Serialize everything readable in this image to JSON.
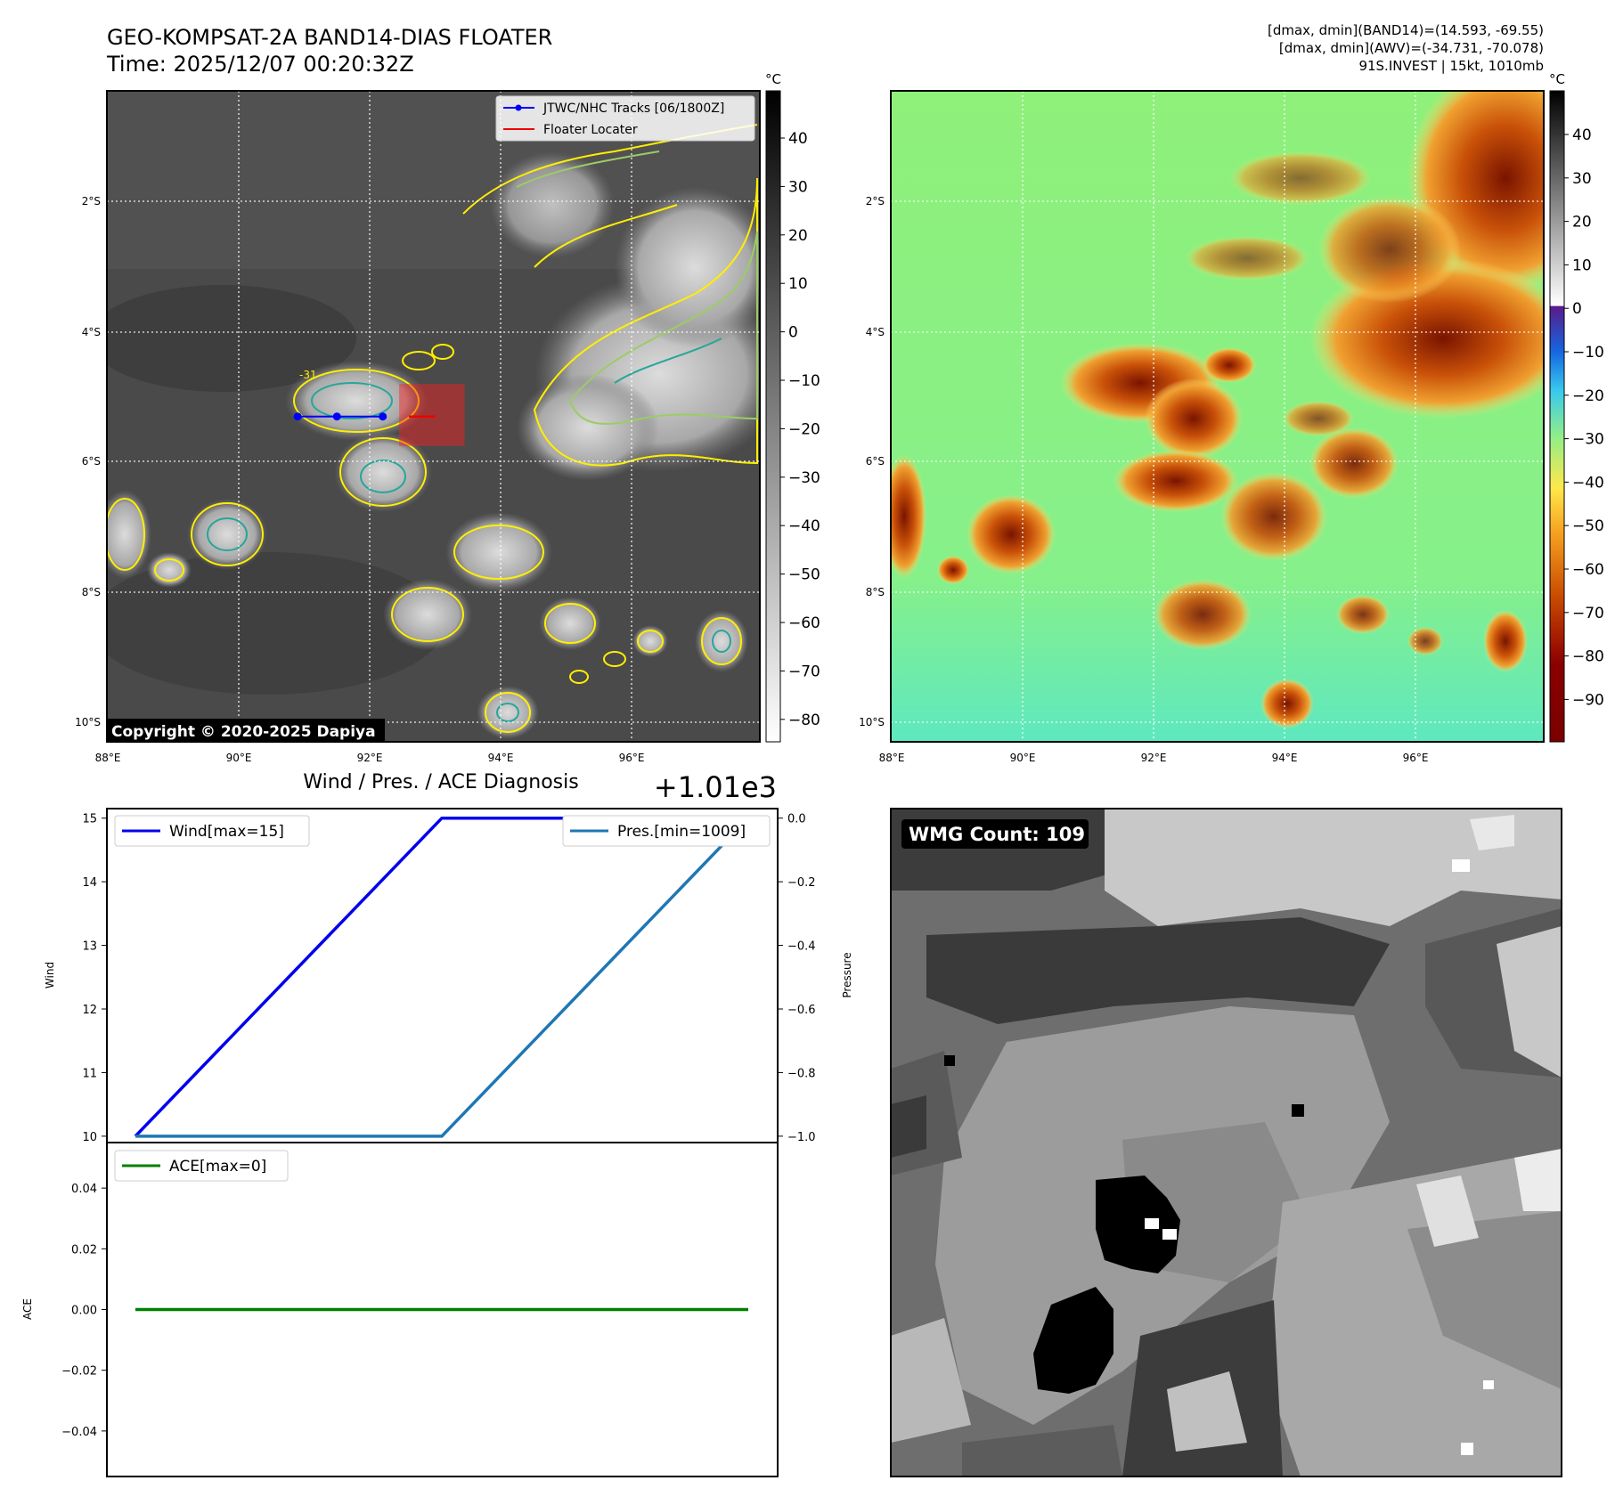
{
  "header": {
    "title": "GEO-KOMPSAT-2A BAND14-DIAS FLOATER",
    "time": "Time: 2025/12/07 00:20:32Z",
    "stats_band14": "[dmax, dmin](BAND14)=(14.593, -69.55)",
    "stats_awv": "[dmax, dmin](AWV)=(-34.731, -70.078)",
    "storm": "91S.INVEST | 15kt, 1010mb"
  },
  "panel_ir": {
    "copyright": "Copyright © 2020-2025 Dapiya",
    "legend": [
      "JTWC/NHC Tracks [06/1800Z]",
      "Floater Locater"
    ],
    "contour_label": "-31",
    "colorbar_unit": "°C",
    "colorbar_ticks": [
      "40",
      "30",
      "20",
      "10",
      "0",
      "−10",
      "−20",
      "−30",
      "−40",
      "−50",
      "−60",
      "−70",
      "−80"
    ]
  },
  "panel_awv": {
    "colorbar_unit": "°C",
    "colorbar_ticks": [
      "40",
      "30",
      "20",
      "10",
      "0",
      "−10",
      "−20",
      "−30",
      "−40",
      "−50",
      "−60",
      "−70",
      "−80",
      "−90"
    ]
  },
  "map_axes": {
    "lon_labels": [
      "88°E",
      "90°E",
      "92°E",
      "94°E",
      "96°E"
    ],
    "lat_labels": [
      "2°S",
      "4°S",
      "6°S",
      "8°S",
      "10°S"
    ]
  },
  "panel_wmg": {
    "badge": "WMG Count: 109"
  },
  "chart_data": [
    {
      "type": "line",
      "title": "Wind / Pres. / ACE Diagnosis",
      "offset_text": "+1.01e3",
      "ylabel_left": "Wind",
      "ylabel_right": "Pressure",
      "wind_ylim": [
        9.9,
        15.15
      ],
      "wind_ticks": [
        "15",
        "14",
        "13",
        "12",
        "11",
        "10"
      ],
      "pres_ylim": [
        -1.02,
        0.03
      ],
      "pres_ticks": [
        "0.0",
        "−0.2",
        "−0.4",
        "−0.6",
        "−0.8",
        "−1.0"
      ],
      "x": [
        0,
        1,
        2
      ],
      "series": [
        {
          "name": "Wind[max=15]",
          "axis": "left",
          "color": "#0000ee",
          "values": [
            10,
            15,
            15
          ]
        },
        {
          "name": "Pres.[min=1009]",
          "axis": "right",
          "color": "#1f77b4",
          "values": [
            -1.0,
            -1.0,
            0.0
          ]
        }
      ]
    },
    {
      "type": "line",
      "ylabel": "ACE",
      "ylim": [
        -0.055,
        0.055
      ],
      "ticks": [
        "0.04",
        "0.02",
        "0.00",
        "−0.02",
        "−0.04"
      ],
      "x": [
        0,
        1,
        2
      ],
      "series": [
        {
          "name": "ACE[max=0]",
          "color": "#008000",
          "values": [
            0,
            0,
            0
          ]
        }
      ]
    }
  ],
  "track": {
    "color": "#0000ff",
    "points": [
      [
        90.9,
        -5.3
      ],
      [
        91.5,
        -5.3
      ],
      [
        92.2,
        -5.3
      ]
    ],
    "floater_box": [
      [
        92.45,
        -4.8
      ],
      [
        93.45,
        -5.75
      ]
    ],
    "floater_line": [
      [
        92.6,
        -5.3
      ],
      [
        93.0,
        -5.3
      ]
    ]
  }
}
